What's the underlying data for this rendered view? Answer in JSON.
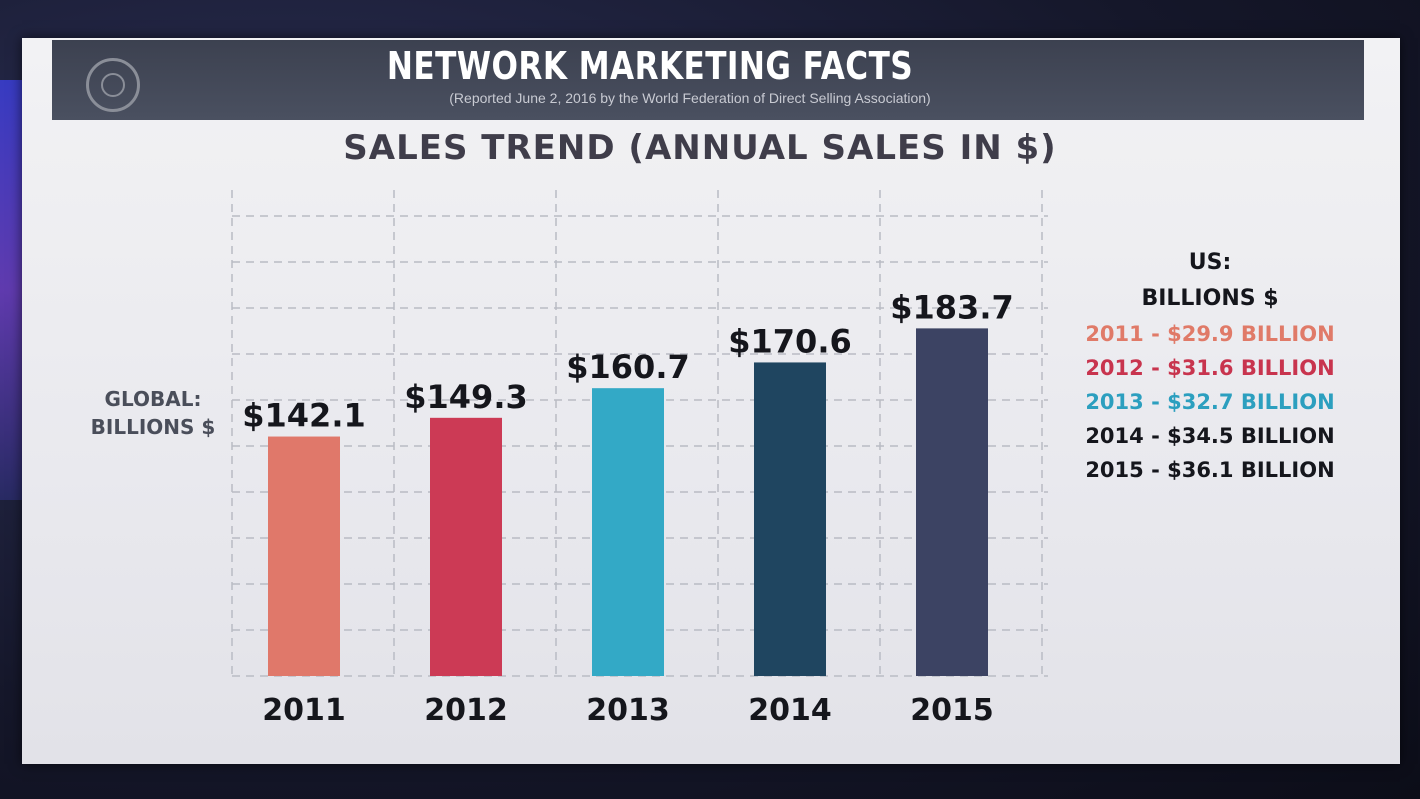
{
  "slide": {
    "title": "NETWORK MARKETING FACTS",
    "source_note": "(Reported June 2, 2016 by the World Federation of Direct Selling Association)",
    "y_axis_label_line1": "GLOBAL:",
    "y_axis_label_line2": "BILLIONS $"
  },
  "legend": {
    "heading_line1": "US:",
    "heading_line2": "BILLIONS $",
    "items": [
      {
        "label": "2011 - $29.9 BILLION",
        "color": "#e07a68"
      },
      {
        "label": "2012 - $31.6 BILLION",
        "color": "#c8344e"
      },
      {
        "label": "2013 - $32.7 BILLION",
        "color": "#2c9fbf"
      },
      {
        "label": "2014 - $34.5 BILLION",
        "color": "#15161c"
      },
      {
        "label": "2015 - $36.1 BILLION",
        "color": "#15161c"
      }
    ]
  },
  "chart_data": {
    "type": "bar",
    "title": "SALES TREND (ANNUAL SALES IN $)",
    "categories": [
      "2011",
      "2012",
      "2013",
      "2014",
      "2015"
    ],
    "values": [
      142.1,
      149.3,
      160.7,
      170.6,
      183.7
    ],
    "value_labels": [
      "$142.1",
      "$149.3",
      "$160.7",
      "$170.6",
      "$183.7"
    ],
    "bar_colors": [
      "#e0786a",
      "#cc3a55",
      "#33a9c6",
      "#1f4560",
      "#3c4363"
    ],
    "ylabel": "GLOBAL: BILLIONS $",
    "grid": true,
    "legend_position": "right"
  }
}
